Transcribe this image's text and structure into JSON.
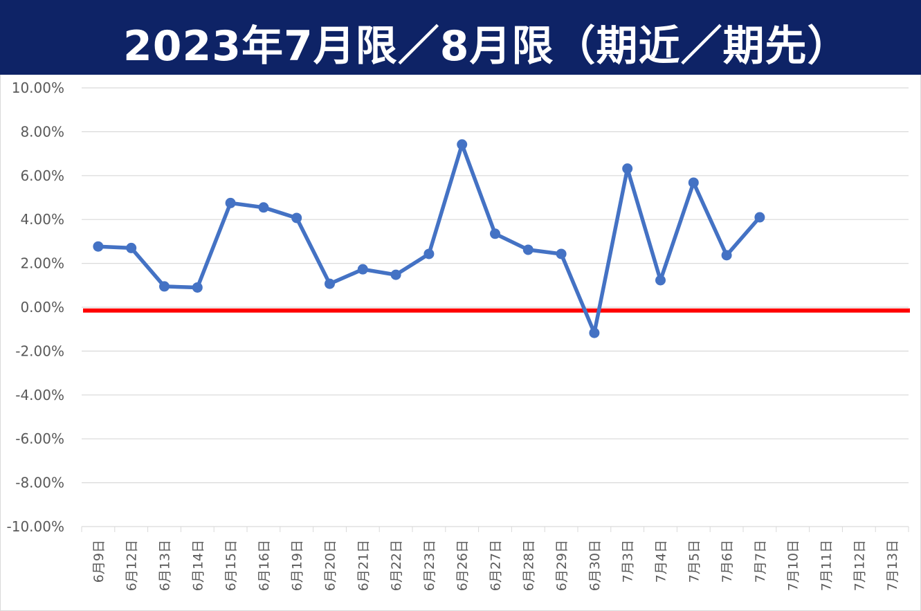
{
  "chart_data": {
    "type": "line",
    "title": "2023年7月限／8月限（期近／期先）",
    "xlabel": "",
    "ylabel": "",
    "categories": [
      "6月9日",
      "6月12日",
      "6月13日",
      "6月14日",
      "6月15日",
      "6月16日",
      "6月19日",
      "6月20日",
      "6月21日",
      "6月22日",
      "6月23日",
      "6月26日",
      "6月27日",
      "6月28日",
      "6月29日",
      "6月30日",
      "7月3日",
      "7月4日",
      "7月5日",
      "7月6日",
      "7月7日",
      "7月10日",
      "7月11日",
      "7月12日",
      "7月13日"
    ],
    "series": [
      {
        "name": "",
        "color": "#4472c4",
        "values": [
          2.77,
          2.7,
          0.95,
          0.9,
          4.75,
          4.55,
          4.07,
          1.07,
          1.73,
          1.48,
          2.43,
          7.42,
          3.35,
          2.62,
          2.43,
          -1.17,
          6.32,
          1.23,
          5.68,
          2.37,
          4.1,
          null,
          null,
          null,
          null
        ]
      }
    ],
    "reference_line": {
      "value": -0.15,
      "color": "#ff0000"
    },
    "ylim": [
      -10,
      10
    ],
    "yticks": [
      "10.00%",
      "8.00%",
      "6.00%",
      "4.00%",
      "2.00%",
      "0.00%",
      "-2.00%",
      "-4.00%",
      "-6.00%",
      "-8.00%",
      "-10.00%"
    ],
    "ytick_values": [
      10,
      8,
      6,
      4,
      2,
      0,
      -2,
      -4,
      -6,
      -8,
      -10
    ],
    "grid": true,
    "legend": "none",
    "colors": {
      "title_band": "#0e2366",
      "gridline": "#d9d9d9",
      "tick_text": "#595959"
    }
  }
}
